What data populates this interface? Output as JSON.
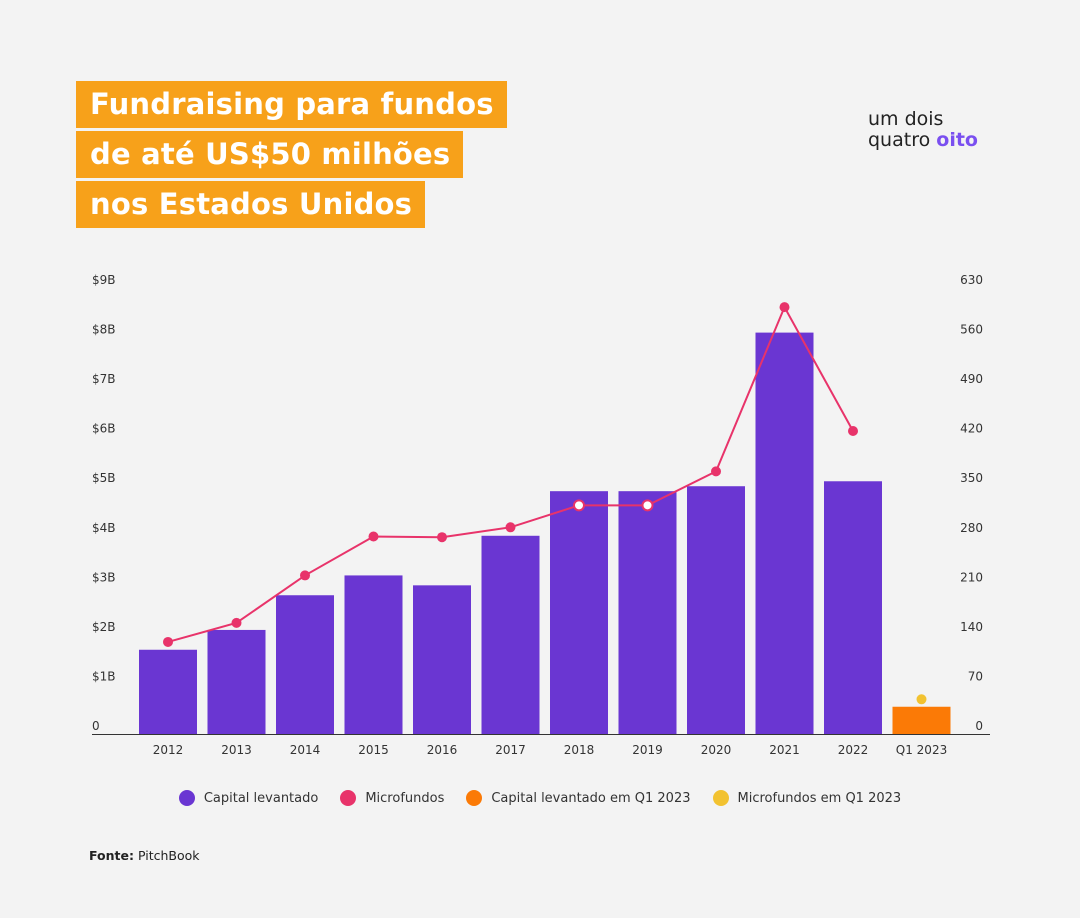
{
  "title_lines": [
    "Fundraising para fundos",
    "de até US$50 milhões",
    "nos Estados Unidos"
  ],
  "brand": {
    "line1": "um dois",
    "line2_a": "quatro",
    "line2_b": "oito"
  },
  "source": {
    "label": "Fonte:",
    "value": "PitchBook"
  },
  "colors": {
    "bar": "#6a36d2",
    "line": "#e8336a",
    "bar_q1": "#fb7a06",
    "dot_q1": "#f2c230",
    "axis": "#333333"
  },
  "legend": [
    {
      "label": "Capital levantado",
      "color": "#6a36d2"
    },
    {
      "label": "Microfundos",
      "color": "#e8336a"
    },
    {
      "label": "Capital levantado em Q1 2023",
      "color": "#fb7a06"
    },
    {
      "label": "Microfundos em Q1 2023",
      "color": "#f2c230"
    }
  ],
  "chart_data": {
    "type": "bar",
    "categories": [
      "2012",
      "2013",
      "2014",
      "2015",
      "2016",
      "2017",
      "2018",
      "2019",
      "2020",
      "2021",
      "2022",
      "Q1 2023"
    ],
    "series": [
      {
        "name": "Capital levantado",
        "axis": "left",
        "type": "bar",
        "values": [
          1.7,
          2.1,
          2.8,
          3.2,
          3.0,
          4.0,
          4.9,
          4.9,
          5.0,
          8.1,
          5.1,
          null
        ]
      },
      {
        "name": "Microfundos",
        "axis": "right",
        "type": "line",
        "values": [
          130,
          157,
          224,
          279,
          278,
          292,
          323,
          323,
          371,
          603,
          428,
          null
        ]
      },
      {
        "name": "Capital levantado em Q1 2023",
        "axis": "left",
        "type": "bar",
        "values": [
          null,
          null,
          null,
          null,
          null,
          null,
          null,
          null,
          null,
          null,
          null,
          0.55
        ]
      },
      {
        "name": "Microfundos em Q1 2023",
        "axis": "right",
        "type": "point",
        "values": [
          null,
          null,
          null,
          null,
          null,
          null,
          null,
          null,
          null,
          null,
          null,
          49
        ]
      }
    ],
    "hollow_points": [
      6,
      7
    ],
    "left_axis": {
      "ticks": [
        0,
        1,
        2,
        3,
        4,
        5,
        6,
        7,
        8,
        9
      ],
      "tick_labels": [
        "0",
        "$1B",
        "$2B",
        "$3B",
        "$4B",
        "$5B",
        "$6B",
        "$7B",
        "$8B",
        "$9B"
      ],
      "ylim": [
        0,
        9
      ]
    },
    "right_axis": {
      "ticks": [
        0,
        70,
        140,
        210,
        280,
        350,
        420,
        490,
        560,
        630
      ],
      "tick_labels": [
        "0",
        "70",
        "140",
        "210",
        "280",
        "350",
        "420",
        "490",
        "560",
        "630"
      ],
      "ylim": [
        0,
        630
      ]
    },
    "grid": false,
    "legend_position": "bottom"
  }
}
